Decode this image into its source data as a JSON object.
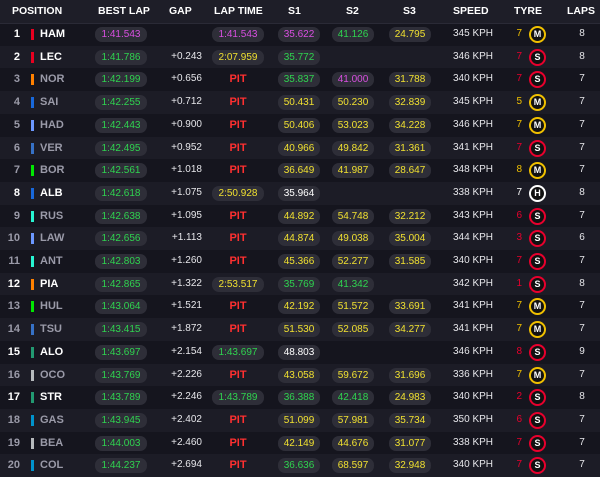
{
  "headers": {
    "position": "POSITION",
    "best_lap": "BEST LAP",
    "gap": "GAP",
    "lap_time": "LAP TIME",
    "s1": "S1",
    "s2": "S2",
    "s3": "S3",
    "speed": "SPEED",
    "tyre": "TYRE",
    "laps": "LAPS"
  },
  "colors": {
    "green": "#2fd34f",
    "purple": "#d84fe0",
    "yellow": "#f0e030",
    "white": "#ffffff",
    "pit": "#ff3030",
    "soft": "#e8002d",
    "medium": "#f0c000",
    "hard": "#ffffff"
  },
  "rows": [
    {
      "pos": "1",
      "driver": "HAM",
      "team_color": "#e80020",
      "dim": false,
      "best": "1:41.543",
      "best_c": "purple",
      "gap": "",
      "lap": "1:41.543",
      "lap_c": "purple",
      "s1": "35.622",
      "s1_c": "purple",
      "s2": "41.126",
      "s2_c": "green",
      "s3": "24.795",
      "s3_c": "yellow",
      "speed": "345 KPH",
      "age": "7",
      "age_c": "yellow",
      "tyre": "M",
      "tyre_color": "#f0c000",
      "laps": "8"
    },
    {
      "pos": "2",
      "driver": "LEC",
      "team_color": "#e80020",
      "dim": false,
      "best": "1:41.786",
      "best_c": "green",
      "gap": "+0.243",
      "lap": "2:07.959",
      "lap_c": "yellow",
      "s1": "35.772",
      "s1_c": "green",
      "s2": "",
      "s2_c": "",
      "s3": "",
      "s3_c": "",
      "speed": "346 KPH",
      "age": "7",
      "age_c": "red",
      "tyre": "S",
      "tyre_color": "#e8002d",
      "laps": "8"
    },
    {
      "pos": "3",
      "driver": "NOR",
      "team_color": "#ff8000",
      "dim": true,
      "best": "1:42.199",
      "best_c": "green",
      "gap": "+0.656",
      "lap": "PIT",
      "lap_c": "pit",
      "s1": "35.837",
      "s1_c": "green",
      "s2": "41.000",
      "s2_c": "purple",
      "s3": "31.788",
      "s3_c": "yellow",
      "speed": "340 KPH",
      "age": "7",
      "age_c": "red",
      "tyre": "S",
      "tyre_color": "#e8002d",
      "laps": "7"
    },
    {
      "pos": "4",
      "driver": "SAI",
      "team_color": "#1868db",
      "dim": true,
      "best": "1:42.255",
      "best_c": "green",
      "gap": "+0.712",
      "lap": "PIT",
      "lap_c": "pit",
      "s1": "50.431",
      "s1_c": "yellow",
      "s2": "50.230",
      "s2_c": "yellow",
      "s3": "32.839",
      "s3_c": "yellow",
      "speed": "345 KPH",
      "age": "5",
      "age_c": "yellow",
      "tyre": "M",
      "tyre_color": "#f0c000",
      "laps": "7"
    },
    {
      "pos": "5",
      "driver": "HAD",
      "team_color": "#6c98ff",
      "dim": true,
      "best": "1:42.443",
      "best_c": "green",
      "gap": "+0.900",
      "lap": "PIT",
      "lap_c": "pit",
      "s1": "50.406",
      "s1_c": "yellow",
      "s2": "53.023",
      "s2_c": "yellow",
      "s3": "34.228",
      "s3_c": "yellow",
      "speed": "346 KPH",
      "age": "7",
      "age_c": "yellow",
      "tyre": "M",
      "tyre_color": "#f0c000",
      "laps": "7"
    },
    {
      "pos": "6",
      "driver": "VER",
      "team_color": "#3671c6",
      "dim": true,
      "best": "1:42.495",
      "best_c": "green",
      "gap": "+0.952",
      "lap": "PIT",
      "lap_c": "pit",
      "s1": "40.966",
      "s1_c": "yellow",
      "s2": "49.842",
      "s2_c": "yellow",
      "s3": "31.361",
      "s3_c": "yellow",
      "speed": "341 KPH",
      "age": "7",
      "age_c": "red",
      "tyre": "S",
      "tyre_color": "#e8002d",
      "laps": "7"
    },
    {
      "pos": "7",
      "driver": "BOR",
      "team_color": "#00e701",
      "dim": true,
      "best": "1:42.561",
      "best_c": "green",
      "gap": "+1.018",
      "lap": "PIT",
      "lap_c": "pit",
      "s1": "36.649",
      "s1_c": "yellow",
      "s2": "41.987",
      "s2_c": "yellow",
      "s3": "28.647",
      "s3_c": "yellow",
      "speed": "348 KPH",
      "age": "8",
      "age_c": "yellow",
      "tyre": "M",
      "tyre_color": "#f0c000",
      "laps": "7"
    },
    {
      "pos": "8",
      "driver": "ALB",
      "team_color": "#1868db",
      "dim": false,
      "best": "1:42.618",
      "best_c": "green",
      "gap": "+1.075",
      "lap": "2:50.928",
      "lap_c": "yellow",
      "s1": "35.964",
      "s1_c": "white",
      "s2": "",
      "s2_c": "",
      "s3": "",
      "s3_c": "",
      "speed": "338 KPH",
      "age": "7",
      "age_c": "white",
      "tyre": "H",
      "tyre_color": "#ffffff",
      "laps": "8"
    },
    {
      "pos": "9",
      "driver": "RUS",
      "team_color": "#27f4d2",
      "dim": true,
      "best": "1:42.638",
      "best_c": "green",
      "gap": "+1.095",
      "lap": "PIT",
      "lap_c": "pit",
      "s1": "44.892",
      "s1_c": "yellow",
      "s2": "54.748",
      "s2_c": "yellow",
      "s3": "32.212",
      "s3_c": "yellow",
      "speed": "343 KPH",
      "age": "6",
      "age_c": "red",
      "tyre": "S",
      "tyre_color": "#e8002d",
      "laps": "7"
    },
    {
      "pos": "10",
      "driver": "LAW",
      "team_color": "#6c98ff",
      "dim": true,
      "best": "1:42.656",
      "best_c": "green",
      "gap": "+1.113",
      "lap": "PIT",
      "lap_c": "pit",
      "s1": "44.874",
      "s1_c": "yellow",
      "s2": "49.038",
      "s2_c": "yellow",
      "s3": "35.004",
      "s3_c": "yellow",
      "speed": "344 KPH",
      "age": "3",
      "age_c": "red",
      "tyre": "S",
      "tyre_color": "#e8002d",
      "laps": "6"
    },
    {
      "pos": "11",
      "driver": "ANT",
      "team_color": "#27f4d2",
      "dim": true,
      "best": "1:42.803",
      "best_c": "green",
      "gap": "+1.260",
      "lap": "PIT",
      "lap_c": "pit",
      "s1": "45.366",
      "s1_c": "yellow",
      "s2": "52.277",
      "s2_c": "yellow",
      "s3": "31.585",
      "s3_c": "yellow",
      "speed": "340 KPH",
      "age": "7",
      "age_c": "red",
      "tyre": "S",
      "tyre_color": "#e8002d",
      "laps": "7"
    },
    {
      "pos": "12",
      "driver": "PIA",
      "team_color": "#ff8000",
      "dim": false,
      "best": "1:42.865",
      "best_c": "green",
      "gap": "+1.322",
      "lap": "2:53.517",
      "lap_c": "yellow",
      "s1": "35.769",
      "s1_c": "green",
      "s2": "41.342",
      "s2_c": "green",
      "s3": "",
      "s3_c": "",
      "speed": "342 KPH",
      "age": "1",
      "age_c": "red",
      "tyre": "S",
      "tyre_color": "#e8002d",
      "laps": "8"
    },
    {
      "pos": "13",
      "driver": "HUL",
      "team_color": "#00e701",
      "dim": true,
      "best": "1:43.064",
      "best_c": "green",
      "gap": "+1.521",
      "lap": "PIT",
      "lap_c": "pit",
      "s1": "42.192",
      "s1_c": "yellow",
      "s2": "51.572",
      "s2_c": "yellow",
      "s3": "33.691",
      "s3_c": "yellow",
      "speed": "341 KPH",
      "age": "7",
      "age_c": "yellow",
      "tyre": "M",
      "tyre_color": "#f0c000",
      "laps": "7"
    },
    {
      "pos": "14",
      "driver": "TSU",
      "team_color": "#3671c6",
      "dim": true,
      "best": "1:43.415",
      "best_c": "green",
      "gap": "+1.872",
      "lap": "PIT",
      "lap_c": "pit",
      "s1": "51.530",
      "s1_c": "yellow",
      "s2": "52.085",
      "s2_c": "yellow",
      "s3": "34.277",
      "s3_c": "yellow",
      "speed": "341 KPH",
      "age": "7",
      "age_c": "yellow",
      "tyre": "M",
      "tyre_color": "#f0c000",
      "laps": "7"
    },
    {
      "pos": "15",
      "driver": "ALO",
      "team_color": "#229971",
      "dim": false,
      "best": "1:43.697",
      "best_c": "green",
      "gap": "+2.154",
      "lap": "1:43.697",
      "lap_c": "green",
      "s1": "48.803",
      "s1_c": "white",
      "s2": "",
      "s2_c": "",
      "s3": "",
      "s3_c": "",
      "speed": "346 KPH",
      "age": "8",
      "age_c": "red",
      "tyre": "S",
      "tyre_color": "#e8002d",
      "laps": "9"
    },
    {
      "pos": "16",
      "driver": "OCO",
      "team_color": "#b6babd",
      "dim": true,
      "best": "1:43.769",
      "best_c": "green",
      "gap": "+2.226",
      "lap": "PIT",
      "lap_c": "pit",
      "s1": "43.058",
      "s1_c": "yellow",
      "s2": "59.672",
      "s2_c": "yellow",
      "s3": "31.696",
      "s3_c": "yellow",
      "speed": "336 KPH",
      "age": "7",
      "age_c": "yellow",
      "tyre": "M",
      "tyre_color": "#f0c000",
      "laps": "7"
    },
    {
      "pos": "17",
      "driver": "STR",
      "team_color": "#229971",
      "dim": false,
      "best": "1:43.789",
      "best_c": "green",
      "gap": "+2.246",
      "lap": "1:43.789",
      "lap_c": "green",
      "s1": "36.388",
      "s1_c": "green",
      "s2": "42.418",
      "s2_c": "green",
      "s3": "24.983",
      "s3_c": "yellow",
      "speed": "340 KPH",
      "age": "2",
      "age_c": "red",
      "tyre": "S",
      "tyre_color": "#e8002d",
      "laps": "8"
    },
    {
      "pos": "18",
      "driver": "GAS",
      "team_color": "#0093cc",
      "dim": true,
      "best": "1:43.945",
      "best_c": "green",
      "gap": "+2.402",
      "lap": "PIT",
      "lap_c": "pit",
      "s1": "51.099",
      "s1_c": "yellow",
      "s2": "57.981",
      "s2_c": "yellow",
      "s3": "35.734",
      "s3_c": "yellow",
      "speed": "350 KPH",
      "age": "6",
      "age_c": "red",
      "tyre": "S",
      "tyre_color": "#e8002d",
      "laps": "7"
    },
    {
      "pos": "19",
      "driver": "BEA",
      "team_color": "#b6babd",
      "dim": true,
      "best": "1:44.003",
      "best_c": "green",
      "gap": "+2.460",
      "lap": "PIT",
      "lap_c": "pit",
      "s1": "42.149",
      "s1_c": "yellow",
      "s2": "44.676",
      "s2_c": "yellow",
      "s3": "31.077",
      "s3_c": "yellow",
      "speed": "338 KPH",
      "age": "7",
      "age_c": "red",
      "tyre": "S",
      "tyre_color": "#e8002d",
      "laps": "7"
    },
    {
      "pos": "20",
      "driver": "COL",
      "team_color": "#0093cc",
      "dim": true,
      "best": "1:44.237",
      "best_c": "green",
      "gap": "+2.694",
      "lap": "PIT",
      "lap_c": "pit",
      "s1": "36.636",
      "s1_c": "green",
      "s2": "68.597",
      "s2_c": "yellow",
      "s3": "32.948",
      "s3_c": "yellow",
      "speed": "340 KPH",
      "age": "7",
      "age_c": "red",
      "tyre": "S",
      "tyre_color": "#e8002d",
      "laps": "7"
    }
  ]
}
